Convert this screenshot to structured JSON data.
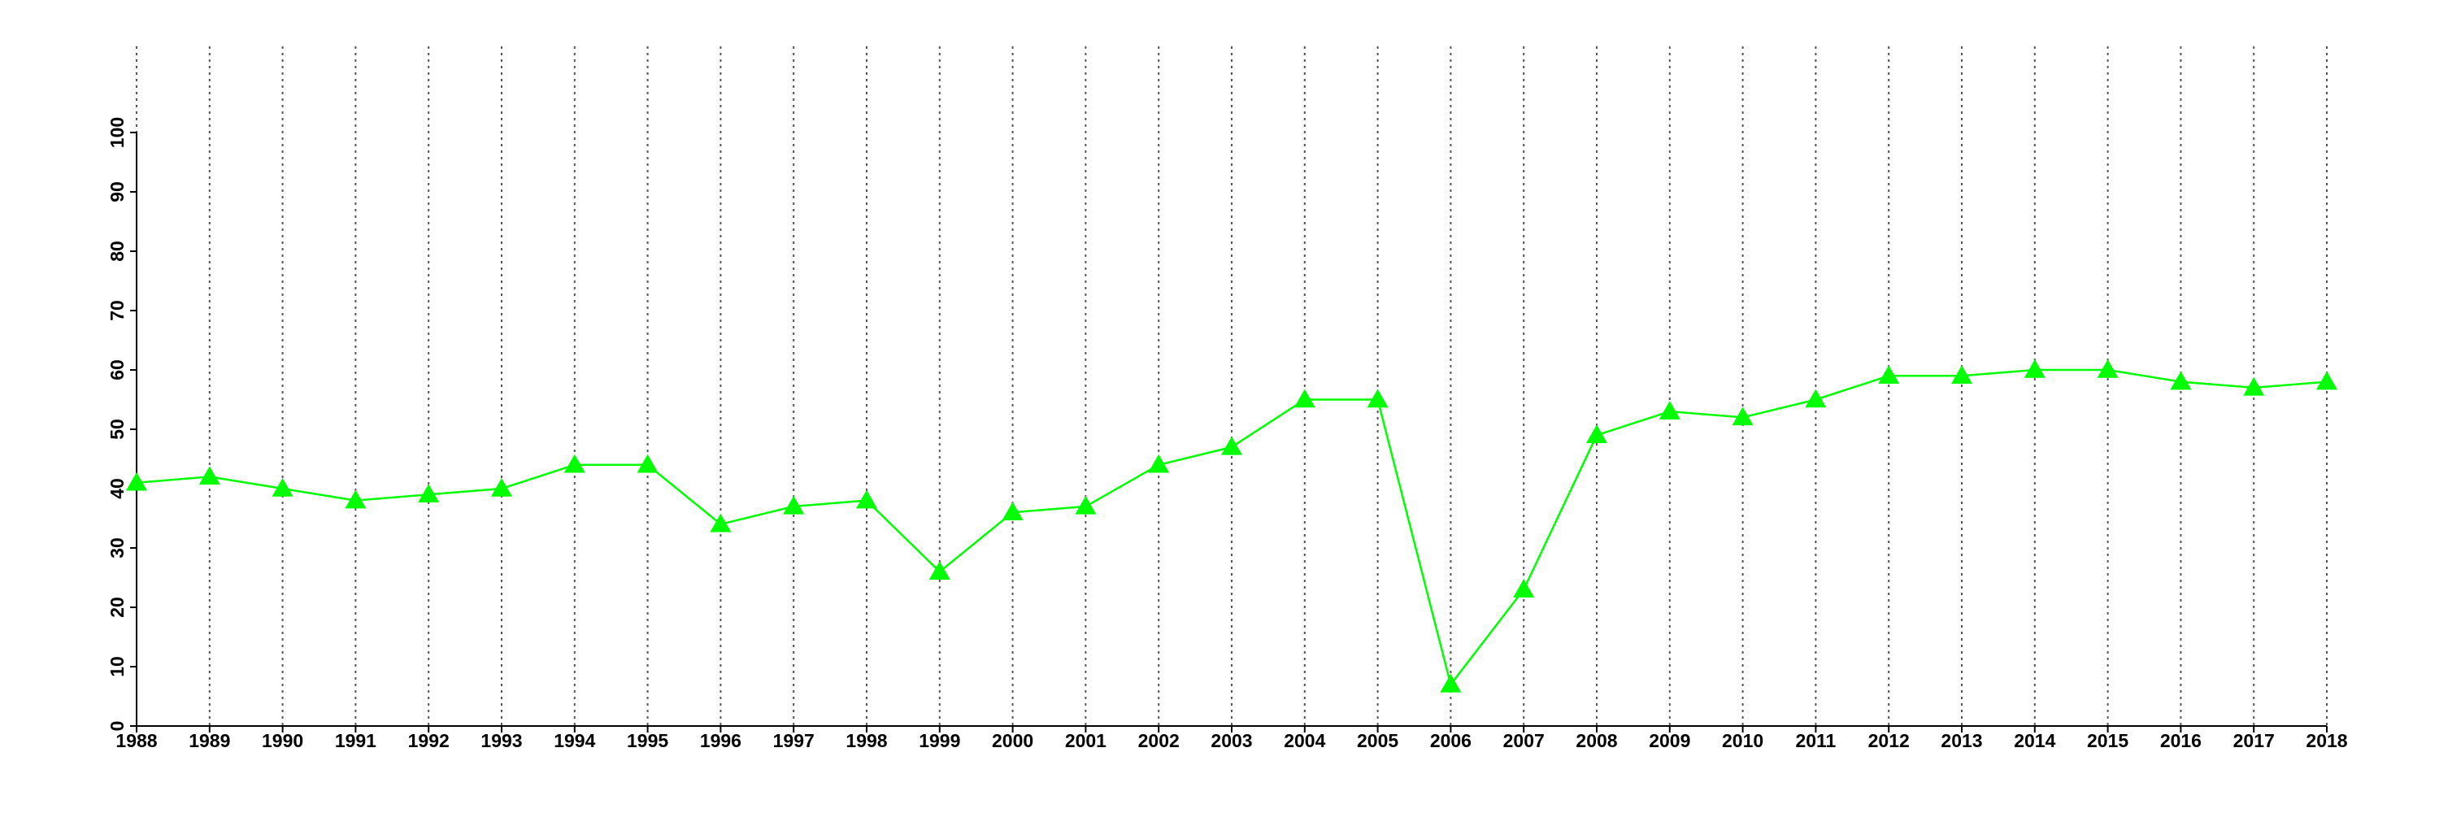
{
  "chart_data": {
    "type": "line",
    "x": [
      1988,
      1989,
      1990,
      1991,
      1992,
      1993,
      1994,
      1995,
      1996,
      1997,
      1998,
      1999,
      2000,
      2001,
      2002,
      2003,
      2004,
      2005,
      2006,
      2007,
      2008,
      2009,
      2010,
      2011,
      2012,
      2013,
      2014,
      2015,
      2016,
      2017,
      2018
    ],
    "series": [
      {
        "color": "#00ff00",
        "values": [
          41,
          42,
          40,
          38,
          39,
          40,
          44,
          44,
          34,
          37,
          38,
          26,
          36,
          37,
          44,
          47,
          55,
          55,
          7,
          23,
          49,
          53,
          52,
          55,
          59,
          59,
          60,
          60,
          58,
          57,
          58
        ]
      }
    ],
    "xlim": [
      1988,
      2018
    ],
    "xticks": [
      1988,
      1989,
      1990,
      1991,
      1992,
      1993,
      1994,
      1995,
      1996,
      1997,
      1998,
      1999,
      2000,
      2001,
      2002,
      2003,
      2004,
      2005,
      2006,
      2007,
      2008,
      2009,
      2010,
      2011,
      2012,
      2013,
      2014,
      2015,
      2016,
      2017,
      2018
    ],
    "ylim": [
      0,
      100
    ],
    "yticks": [
      0,
      10,
      20,
      30,
      40,
      50,
      60,
      70,
      80,
      90,
      100
    ],
    "grid": "x"
  }
}
